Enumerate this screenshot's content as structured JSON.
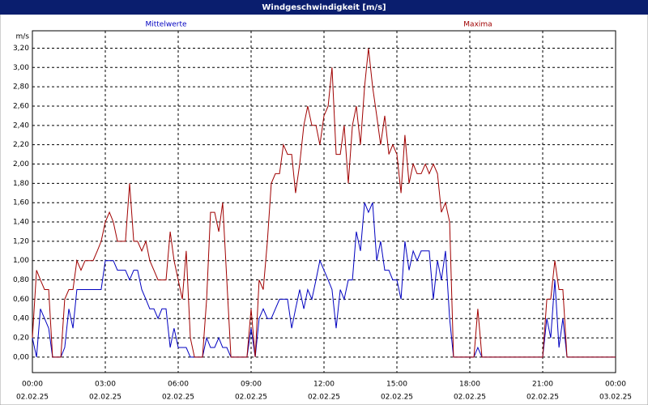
{
  "chart_data": {
    "type": "line",
    "title": "Windgeschwindigkeit [m/s]",
    "y_unit": "m/s",
    "xlim": [
      0,
      24
    ],
    "ylim": [
      -0.16,
      3.38
    ],
    "xticks": [
      {
        "value": 0,
        "label": "00:00"
      },
      {
        "value": 3,
        "label": "03:00"
      },
      {
        "value": 6,
        "label": "06:00"
      },
      {
        "value": 9,
        "label": "09:00"
      },
      {
        "value": 12,
        "label": "12:00"
      },
      {
        "value": 15,
        "label": "15:00"
      },
      {
        "value": 18,
        "label": "18:00"
      },
      {
        "value": 21,
        "label": "21:00"
      },
      {
        "value": 24,
        "label": "00:00"
      }
    ],
    "xtick_dates": [
      "02.02.25",
      "02.02.25",
      "02.02.25",
      "02.02.25",
      "02.02.25",
      "02.02.25",
      "02.02.25",
      "02.02.25",
      "03.02.25"
    ],
    "yticks": [
      {
        "value": 0,
        "label": "0,00"
      },
      {
        "value": 0.2,
        "label": "0,20"
      },
      {
        "value": 0.4,
        "label": "0,40"
      },
      {
        "value": 0.6,
        "label": "0,60"
      },
      {
        "value": 0.8,
        "label": "0,80"
      },
      {
        "value": 1,
        "label": "1,00"
      },
      {
        "value": 1.2,
        "label": "1,20"
      },
      {
        "value": 1.4,
        "label": "1,40"
      },
      {
        "value": 1.6,
        "label": "1,60"
      },
      {
        "value": 1.8,
        "label": "1,80"
      },
      {
        "value": 2,
        "label": "2,00"
      },
      {
        "value": 2.2,
        "label": "2,20"
      },
      {
        "value": 2.4,
        "label": "2,40"
      },
      {
        "value": 2.6,
        "label": "2,60"
      },
      {
        "value": 2.8,
        "label": "2,80"
      },
      {
        "value": 3,
        "label": "3,00"
      },
      {
        "value": 3.2,
        "label": "3,20"
      }
    ],
    "grid": true,
    "x": [
      0,
      0.17,
      0.33,
      0.5,
      0.67,
      0.83,
      1,
      1.17,
      1.33,
      1.5,
      1.67,
      1.83,
      2,
      2.17,
      2.33,
      2.5,
      2.67,
      2.83,
      3,
      3.17,
      3.33,
      3.5,
      3.67,
      3.83,
      4,
      4.17,
      4.33,
      4.5,
      4.67,
      4.83,
      5,
      5.17,
      5.33,
      5.5,
      5.67,
      5.83,
      6,
      6.17,
      6.33,
      6.5,
      6.67,
      6.83,
      7,
      7.17,
      7.33,
      7.5,
      7.67,
      7.83,
      8,
      8.17,
      8.33,
      8.5,
      8.67,
      8.83,
      9,
      9.17,
      9.33,
      9.5,
      9.67,
      9.83,
      10,
      10.17,
      10.33,
      10.5,
      10.67,
      10.83,
      11,
      11.17,
      11.33,
      11.5,
      11.67,
      11.83,
      12,
      12.17,
      12.33,
      12.5,
      12.67,
      12.83,
      13,
      13.17,
      13.33,
      13.5,
      13.67,
      13.83,
      14,
      14.17,
      14.33,
      14.5,
      14.67,
      14.83,
      15,
      15.17,
      15.33,
      15.5,
      15.67,
      15.83,
      16,
      16.17,
      16.33,
      16.5,
      16.67,
      16.83,
      17,
      17.17,
      17.33,
      17.5,
      17.67,
      17.83,
      18,
      18.17,
      18.33,
      18.5,
      18.67,
      18.83,
      19,
      19.17,
      19.33,
      19.5,
      19.67,
      19.83,
      20,
      20.17,
      20.33,
      20.5,
      20.67,
      20.83,
      21,
      21.17,
      21.33,
      21.5,
      21.67,
      21.83,
      22,
      22.17,
      22.33,
      22.5,
      22.67,
      22.83,
      23,
      23.17,
      23.33,
      23.5,
      23.67,
      23.83,
      24
    ],
    "series": [
      {
        "name": "Mittelwerte",
        "color": "#0000c0",
        "values": [
          0.2,
          0,
          0.5,
          0.4,
          0.3,
          0,
          0,
          0,
          0.1,
          0.5,
          0.3,
          0.7,
          0.7,
          0.7,
          0.7,
          0.7,
          0.7,
          0.7,
          1.0,
          1.0,
          1.0,
          0.9,
          0.9,
          0.9,
          0.8,
          0.9,
          0.9,
          0.7,
          0.6,
          0.5,
          0.5,
          0.4,
          0.5,
          0.5,
          0.1,
          0.3,
          0.1,
          0.1,
          0.1,
          0,
          0,
          0,
          0,
          0.2,
          0.1,
          0.1,
          0.2,
          0.1,
          0.1,
          0,
          0,
          0,
          0,
          0,
          0.3,
          0,
          0.4,
          0.5,
          0.4,
          0.4,
          0.5,
          0.6,
          0.6,
          0.6,
          0.3,
          0.5,
          0.7,
          0.5,
          0.7,
          0.6,
          0.8,
          1.0,
          0.9,
          0.8,
          0.7,
          0.3,
          0.7,
          0.6,
          0.8,
          0.8,
          1.3,
          1.1,
          1.6,
          1.5,
          1.6,
          1.0,
          1.2,
          0.9,
          0.9,
          0.8,
          0.8,
          0.6,
          1.2,
          0.9,
          1.1,
          1.0,
          1.1,
          1.1,
          1.1,
          0.6,
          1.0,
          0.8,
          1.1,
          0.4,
          0,
          0,
          0,
          0,
          0,
          0,
          0.1,
          0,
          0,
          0,
          0,
          0,
          0,
          0,
          0,
          0,
          0,
          0,
          0,
          0,
          0,
          0,
          0,
          0.4,
          0.2,
          0.8,
          0.1,
          0.4,
          0,
          0,
          0,
          0,
          0,
          0,
          0,
          0,
          0,
          0,
          0,
          0,
          0
        ]
      },
      {
        "name": "Maxima",
        "color": "#a00000",
        "values": [
          0.2,
          0.9,
          0.8,
          0.7,
          0.7,
          0,
          0,
          0,
          0.6,
          0.7,
          0.7,
          1.0,
          0.9,
          1.0,
          1.0,
          1.0,
          1.1,
          1.2,
          1.4,
          1.5,
          1.4,
          1.2,
          1.2,
          1.2,
          1.8,
          1.2,
          1.2,
          1.1,
          1.2,
          1.0,
          0.9,
          0.8,
          0.8,
          0.8,
          1.3,
          1.0,
          0.8,
          0.6,
          1.1,
          0.2,
          0,
          0,
          0,
          0.6,
          1.5,
          1.5,
          1.3,
          1.6,
          0.8,
          0,
          0,
          0,
          0,
          0,
          0.5,
          0,
          0.8,
          0.7,
          1.2,
          1.8,
          1.9,
          1.9,
          2.2,
          2.1,
          2.1,
          1.7,
          2.0,
          2.4,
          2.6,
          2.4,
          2.4,
          2.2,
          2.5,
          2.6,
          3.0,
          2.1,
          2.1,
          2.4,
          1.8,
          2.4,
          2.6,
          2.2,
          2.8,
          3.2,
          2.8,
          2.5,
          2.2,
          2.5,
          2.1,
          2.2,
          2.1,
          1.7,
          2.3,
          1.8,
          2.0,
          1.9,
          1.9,
          2.0,
          1.9,
          2.0,
          1.9,
          1.5,
          1.6,
          1.4,
          0,
          0,
          0,
          0,
          0,
          0,
          0.5,
          0,
          0,
          0,
          0,
          0,
          0,
          0,
          0,
          0,
          0,
          0,
          0,
          0,
          0,
          0,
          0,
          0.6,
          0.6,
          1.0,
          0.7,
          0.7,
          0,
          0,
          0,
          0,
          0,
          0,
          0,
          0,
          0,
          0,
          0,
          0,
          0
        ]
      }
    ]
  }
}
